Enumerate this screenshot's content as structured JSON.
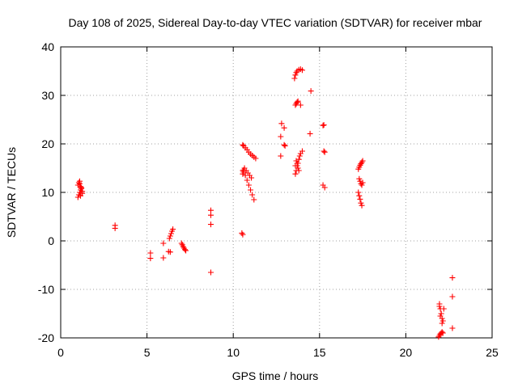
{
  "chart_data": {
    "type": "scatter",
    "title": "Day 108 of 2025, Sidereal Day-to-day VTEC variation (SDTVAR) for receiver mbar",
    "xlabel": "GPS time / hours",
    "ylabel": "SDTVAR / TECUs",
    "xlim": [
      0,
      25
    ],
    "ylim": [
      -20,
      40
    ],
    "xticks": [
      "0",
      "5",
      "10",
      "15",
      "20",
      "25"
    ],
    "yticks": [
      "-20",
      "-10",
      "0",
      "10",
      "20",
      "30",
      "40"
    ],
    "xtick_values": [
      0,
      5,
      10,
      15,
      20,
      25
    ],
    "ytick_values": [
      -20,
      -10,
      0,
      10,
      20,
      30,
      40
    ],
    "grid": true,
    "marker": "plus",
    "color": "#ff0000",
    "series": [
      {
        "name": "SDTVAR",
        "x": [
          1.0,
          1.05,
          1.1,
          1.15,
          1.2,
          1.25,
          1.0,
          1.05,
          1.1,
          1.15,
          1.2,
          1.25,
          1.1,
          1.15,
          3.15,
          3.15,
          5.2,
          5.2,
          5.95,
          5.95,
          6.25,
          6.3,
          6.35,
          6.4,
          6.45,
          6.5,
          6.35,
          7.0,
          7.05,
          7.1,
          7.15,
          7.2,
          7.25,
          8.7,
          8.7,
          8.7,
          8.7,
          10.5,
          10.55,
          10.55,
          10.6,
          10.7,
          10.8,
          10.9,
          11.0,
          11.1,
          11.2,
          11.3,
          10.55,
          10.6,
          10.7,
          10.8,
          10.9,
          11.0,
          11.1,
          11.2,
          10.55,
          10.6,
          10.65,
          10.75,
          10.85,
          10.95,
          11.05,
          12.75,
          12.75,
          12.8,
          12.95,
          12.95,
          13.0,
          13.55,
          13.6,
          13.65,
          13.7,
          13.8,
          13.9,
          14.0,
          13.6,
          13.65,
          13.7,
          13.75,
          13.9,
          13.6,
          13.65,
          13.7,
          13.75,
          13.8,
          13.85,
          13.9,
          14.0,
          13.6,
          13.65,
          13.7,
          13.75,
          13.8,
          14.45,
          14.5,
          15.2,
          15.25,
          15.25,
          15.3,
          15.2,
          15.3,
          17.25,
          17.3,
          17.35,
          17.4,
          17.45,
          17.5,
          17.3,
          17.35,
          17.4,
          17.45,
          17.5,
          17.25,
          17.3,
          17.35,
          17.4,
          17.45,
          21.9,
          21.95,
          22.0,
          22.05,
          22.1,
          22.15,
          21.95,
          22.0,
          22.05,
          22.1,
          22.15,
          21.95,
          22.0,
          22.05,
          22.1,
          22.2,
          22.7,
          22.7,
          22.7
        ],
        "y": [
          9.0,
          9.5,
          10.0,
          10.5,
          11.0,
          9.8,
          11.5,
          12.0,
          11.8,
          11.2,
          10.8,
          10.2,
          12.3,
          9.3,
          3.2,
          2.6,
          -2.5,
          -3.6,
          -0.5,
          -3.5,
          -2.2,
          0.5,
          1.0,
          1.5,
          2.0,
          2.4,
          -2.3,
          -0.5,
          -0.8,
          -1.2,
          -1.5,
          -1.8,
          -2.0,
          6.3,
          5.3,
          3.4,
          -6.5,
          1.6,
          1.3,
          19.8,
          19.6,
          19.2,
          18.8,
          18.3,
          17.9,
          17.6,
          17.3,
          17.0,
          14.5,
          14.2,
          13.5,
          12.5,
          11.5,
          10.5,
          9.5,
          8.5,
          13.8,
          14.6,
          15.0,
          14.5,
          14.0,
          13.5,
          13.0,
          21.5,
          17.5,
          24.2,
          23.3,
          19.8,
          19.6,
          33.5,
          34.2,
          34.7,
          35.0,
          35.3,
          35.4,
          35.2,
          28.0,
          28.3,
          28.6,
          28.8,
          28.0,
          13.8,
          14.5,
          15.5,
          16.0,
          16.8,
          17.5,
          18.0,
          18.5,
          15.5,
          16.5,
          16.0,
          15.0,
          14.5,
          22.1,
          30.9,
          23.8,
          23.9,
          18.5,
          18.3,
          11.5,
          11.0,
          14.8,
          15.2,
          15.6,
          15.9,
          16.2,
          16.5,
          12.8,
          12.3,
          11.8,
          11.5,
          12.0,
          10.0,
          9.3,
          8.6,
          7.8,
          7.3,
          -19.8,
          -19.5,
          -19.2,
          -19.0,
          -18.8,
          -19.0,
          -13.0,
          -14.0,
          -15.0,
          -16.0,
          -16.5,
          -13.5,
          -15.5,
          -15.0,
          -17.0,
          -14.0,
          -7.6,
          -11.5,
          -18.0
        ]
      }
    ]
  }
}
